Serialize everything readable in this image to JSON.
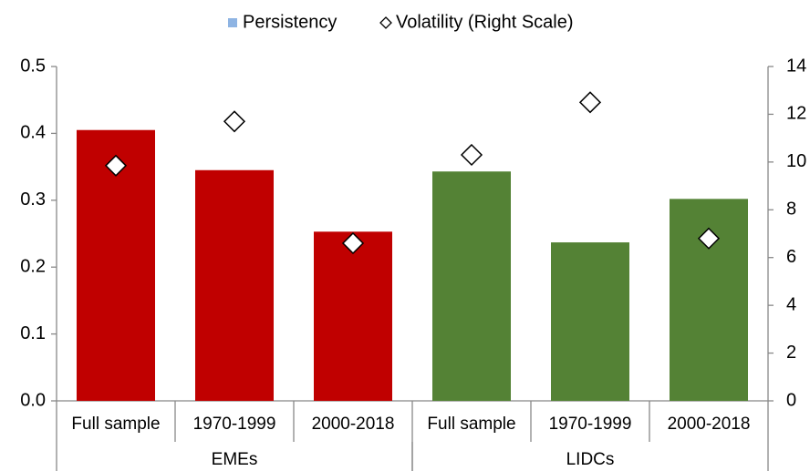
{
  "chart_data": {
    "type": "bar",
    "categories": [
      "Full sample",
      "1970-1999",
      "2000-2018",
      "Full sample",
      "1970-1999",
      "2000-2018"
    ],
    "groups": [
      "EMEs",
      "LIDCs"
    ],
    "series": [
      {
        "name": "Persistency",
        "color": "#8eb4e3",
        "colors": [
          "#c00000",
          "#c00000",
          "#c00000",
          "#548235",
          "#548235",
          "#548235"
        ],
        "values": [
          0.405,
          0.345,
          0.253,
          0.343,
          0.237,
          0.302
        ]
      },
      {
        "name": "Volatility (Right Scale)",
        "type": "scatter",
        "axis": "y2",
        "color": "#000000",
        "values": [
          9.85,
          11.7,
          6.6,
          10.3,
          12.5,
          6.8
        ]
      }
    ],
    "ylim": [
      0,
      0.5
    ],
    "yticks": [
      {
        "value": 0,
        "label": "0.0"
      },
      0.1,
      0.2,
      0.3,
      0.4,
      0.5
    ],
    "y2lim": [
      0,
      14
    ],
    "y2ticks": [
      0,
      2,
      4,
      6,
      8,
      10,
      12,
      14
    ],
    "legend": "top"
  }
}
